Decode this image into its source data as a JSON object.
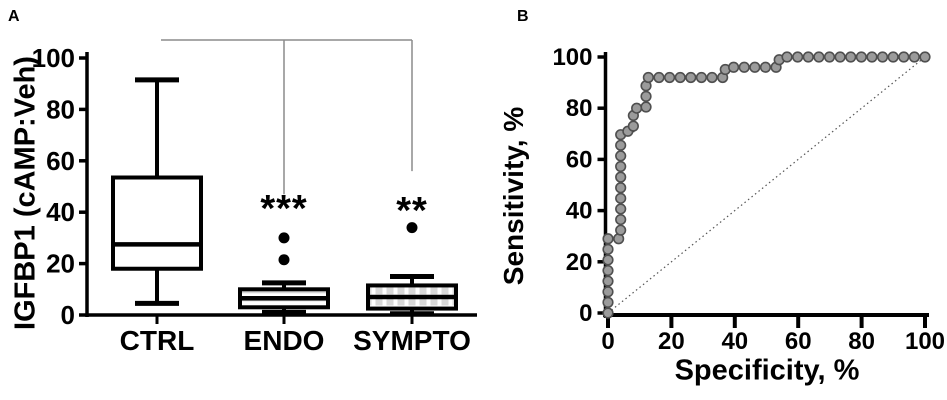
{
  "chart_data": [
    {
      "panel_label": "A",
      "type": "bar",
      "subtype": "boxplot",
      "ylabel": "IGFBP1 (cAMP:Veh)",
      "ylim": [
        0,
        105
      ],
      "yticks": [
        0,
        20,
        40,
        60,
        80,
        100
      ],
      "categories": [
        "CTRL",
        "ENDO",
        "SYMPTO"
      ],
      "boxes": [
        {
          "category": "CTRL",
          "whisker_low": 4.5,
          "q1": 18,
          "median": 27.5,
          "q3": 53.5,
          "whisker_high": 91.5,
          "outliers": [],
          "fill": "white",
          "significance": ""
        },
        {
          "category": "ENDO",
          "whisker_low": 1,
          "q1": 3,
          "median": 6.5,
          "q3": 10,
          "whisker_high": 12.5,
          "outliers": [
            21.5,
            30
          ],
          "fill": "hlines",
          "significance": "***"
        },
        {
          "category": "SYMPTO",
          "whisker_low": 0.5,
          "q1": 2.5,
          "median": 7,
          "q3": 11.5,
          "whisker_high": 15,
          "outliers": [
            34
          ],
          "fill": "grid",
          "significance": "**"
        }
      ],
      "comparison_bracket": {
        "top_value": 107,
        "from_category": "CTRL",
        "to_category": "SYMPTO",
        "drops": [
          {
            "category": "ENDO",
            "end_value": 47
          },
          {
            "category": "SYMPTO",
            "end_value": 56
          }
        ]
      }
    },
    {
      "panel_label": "B",
      "type": "line",
      "subtype": "roc",
      "xlabel": "Specificity, %",
      "ylabel": "Sensitivity, %",
      "xlim": [
        0,
        100
      ],
      "ylim": [
        0,
        100
      ],
      "xticks": [
        0,
        20,
        40,
        60,
        80,
        100
      ],
      "yticks": [
        0,
        20,
        40,
        60,
        80,
        100
      ],
      "grid": false,
      "roc_points": [
        [
          0,
          0
        ],
        [
          0,
          29
        ],
        [
          4,
          29
        ],
        [
          4,
          71
        ],
        [
          8,
          71
        ],
        [
          8,
          80
        ],
        [
          12,
          80
        ],
        [
          12,
          92
        ],
        [
          37,
          92
        ],
        [
          37,
          96
        ],
        [
          54,
          96
        ],
        [
          54,
          100
        ],
        [
          100,
          100
        ]
      ],
      "marker": "gray-circle",
      "reference_line": {
        "points": [
          [
            0,
            0
          ],
          [
            100,
            100
          ]
        ],
        "style": "dotted"
      }
    }
  ],
  "colors": {
    "ink": "#000000",
    "marker_fill": "#9b9b9b",
    "marker_stroke": "#4f4f4f",
    "bracket_line": "#8c8c8c",
    "pattern_gray": "#d6d6d6",
    "reference_line": "#555555"
  }
}
